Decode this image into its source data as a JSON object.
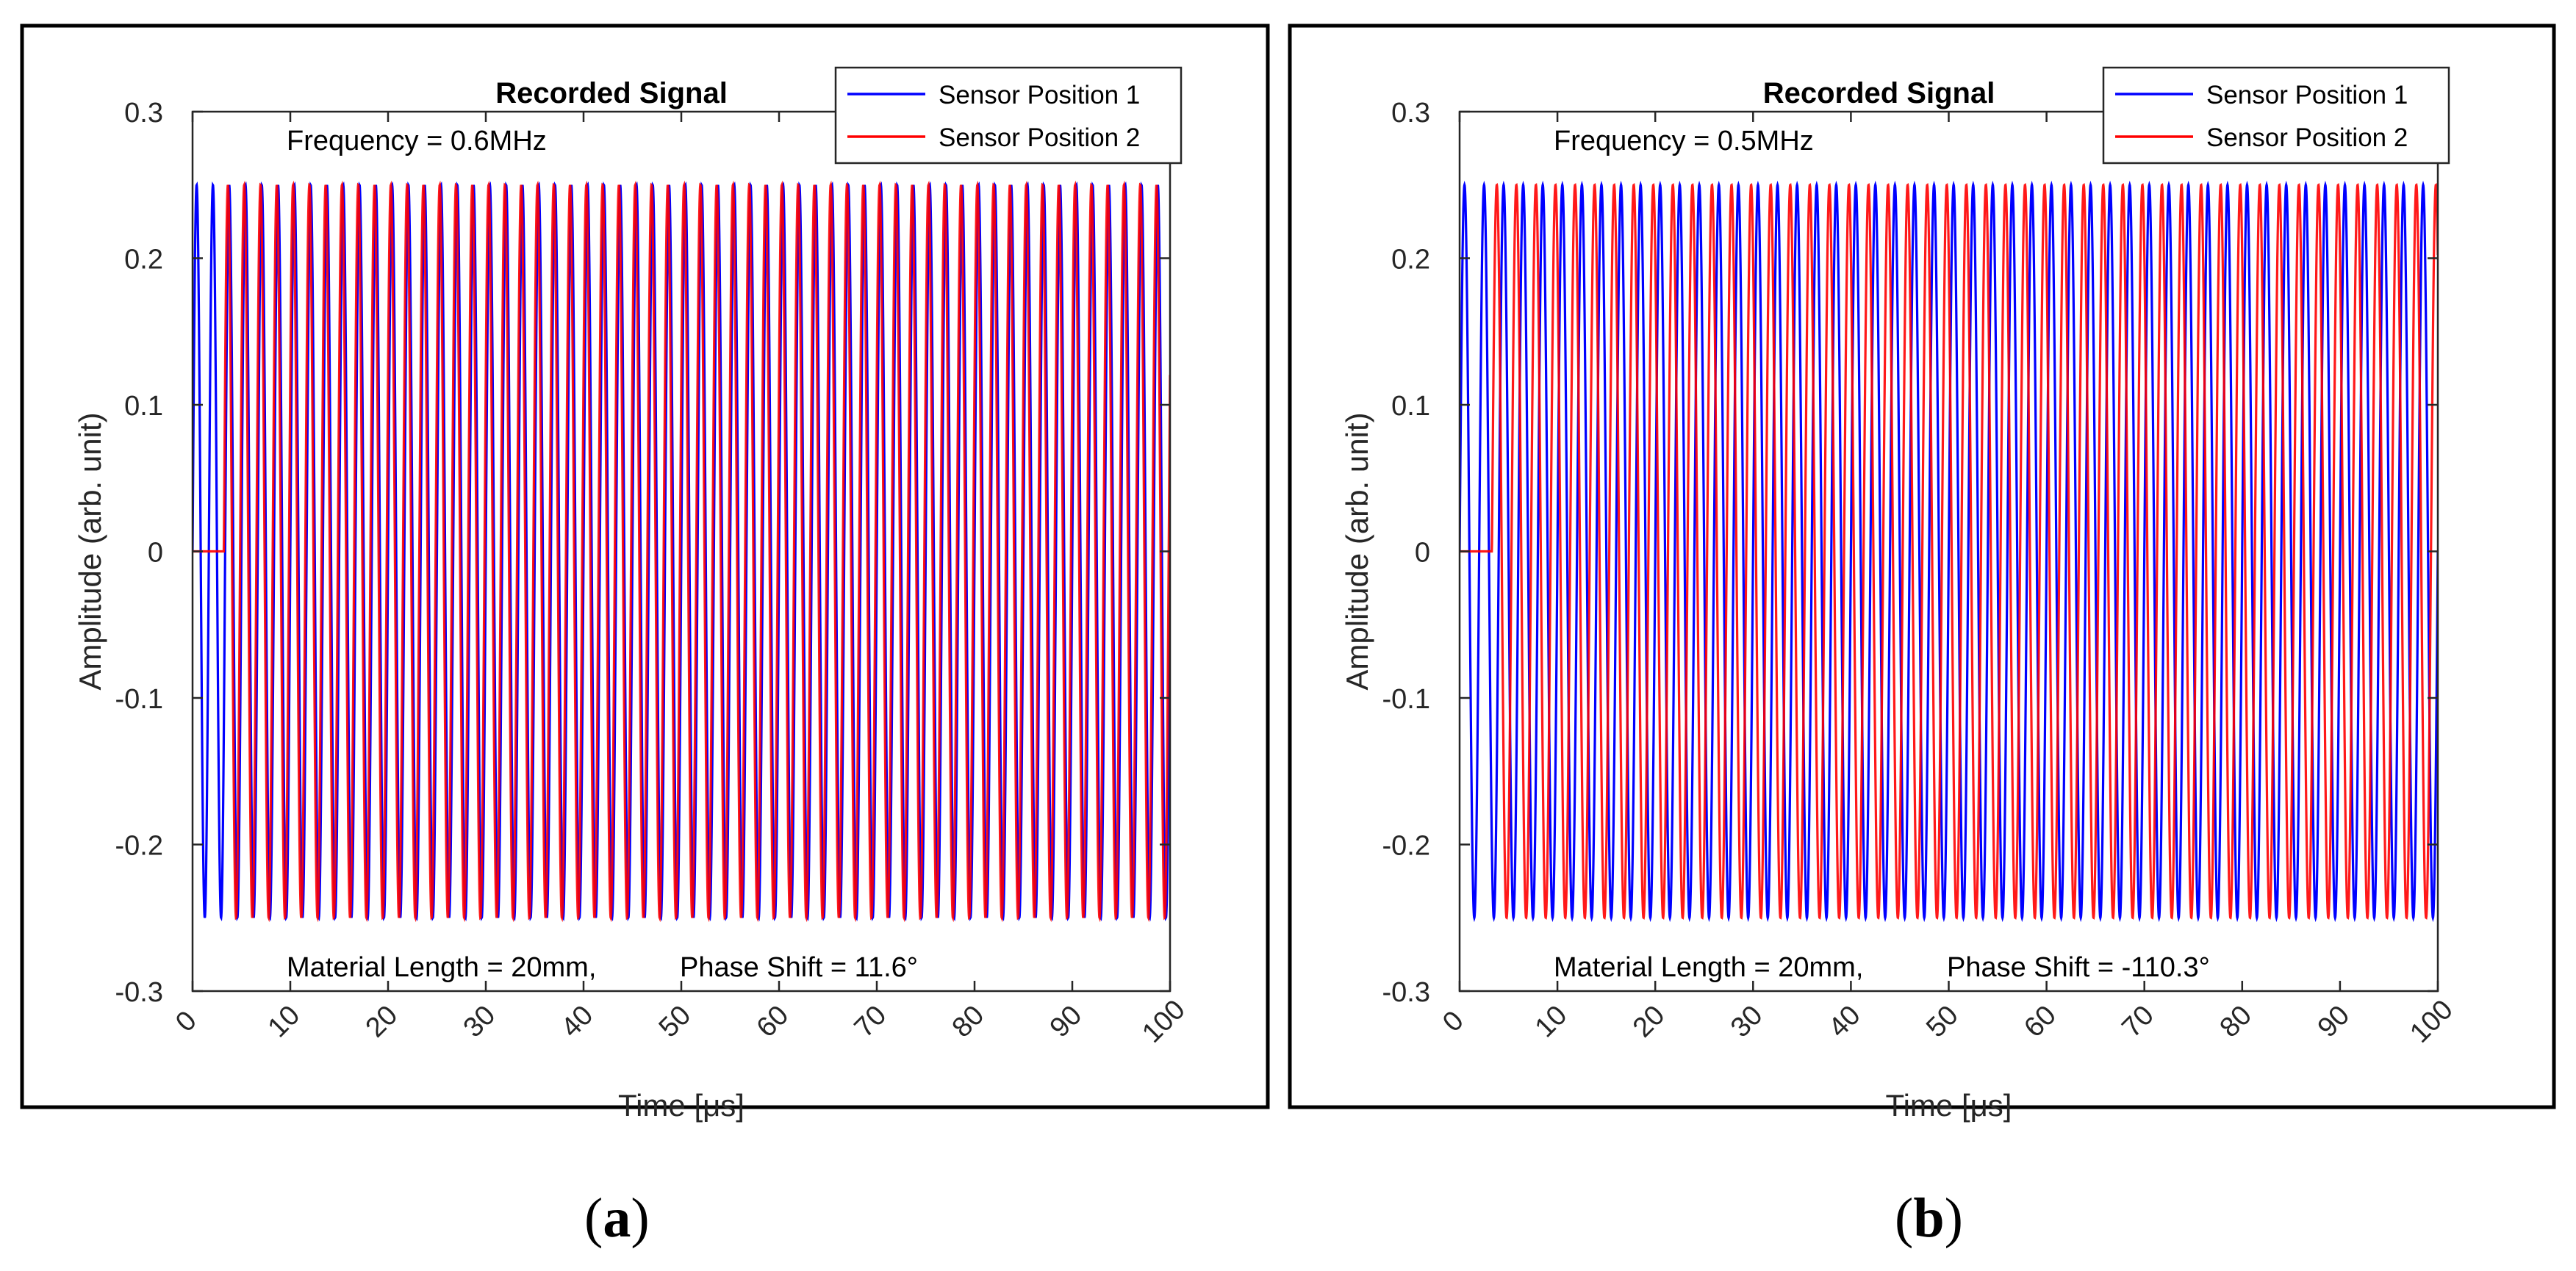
{
  "chart_data": [
    {
      "type": "line",
      "panel": "(a)",
      "panel_letter": "a",
      "title": "Recorded Signal",
      "xlabel": "Time [μs]",
      "ylabel": "Amplitude (arb. unit)",
      "xlim": [
        0,
        100
      ],
      "ylim": [
        -0.3,
        0.3
      ],
      "xticks": [
        0,
        10,
        20,
        30,
        40,
        50,
        60,
        70,
        80,
        90,
        100
      ],
      "yticks": [
        0.3,
        0.2,
        0.1,
        0,
        -0.1,
        -0.2,
        -0.3
      ],
      "ytick_labels": [
        "0.3",
        "0.2",
        "0.1",
        "0",
        "-0.1",
        "-0.2",
        "-0.3"
      ],
      "grid": false,
      "legend_position": "top-right",
      "annotations": {
        "frequency": "Frequency = 0.6MHz",
        "material_length": "Material Length = 20mm,",
        "phase_shift": "Phase Shift = 11.6°"
      },
      "frequency_mhz": 0.6,
      "amplitude": 0.25,
      "series": [
        {
          "name": "Sensor Position 1",
          "color": "#0000ff",
          "start_us": 0,
          "phase_deg": 0
        },
        {
          "name": "Sensor Position 2",
          "color": "#ff0000",
          "start_us": 3.2,
          "phase_deg": 11.6
        }
      ]
    },
    {
      "type": "line",
      "panel": "(b)",
      "panel_letter": "b",
      "title": "Recorded Signal",
      "xlabel": "Time [μs]",
      "ylabel": "Amplitude (arb. unit)",
      "xlim": [
        0,
        100
      ],
      "ylim": [
        -0.3,
        0.3
      ],
      "xticks": [
        0,
        10,
        20,
        30,
        40,
        50,
        60,
        70,
        80,
        90,
        100
      ],
      "yticks": [
        0.3,
        0.2,
        0.1,
        0,
        -0.1,
        -0.2,
        -0.3
      ],
      "ytick_labels": [
        "0.3",
        "0.2",
        "0.1",
        "0",
        "-0.1",
        "-0.2",
        "-0.3"
      ],
      "grid": false,
      "legend_position": "top-right",
      "annotations": {
        "frequency": "Frequency = 0.5MHz",
        "material_length": "Material Length = 20mm,",
        "phase_shift": "Phase Shift = -110.3°"
      },
      "frequency_mhz": 0.5,
      "amplitude": 0.25,
      "series": [
        {
          "name": "Sensor Position 1",
          "color": "#0000ff",
          "start_us": 0,
          "phase_deg": 0
        },
        {
          "name": "Sensor Position 2",
          "color": "#ff0000",
          "start_us": 3.3,
          "phase_deg": -110.3
        }
      ]
    }
  ]
}
